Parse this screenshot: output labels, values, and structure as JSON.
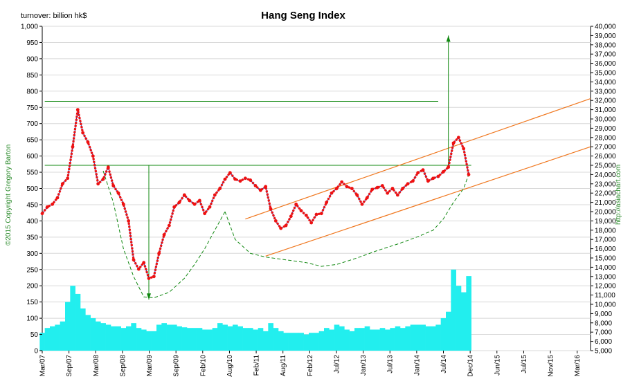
{
  "chart_data": {
    "type": "line",
    "title": "Hang Seng Index",
    "left_axis_label": "turnover: billion hk$",
    "copyright": "©2015 Copyright Gregory Barton",
    "website": "http://asiachart.com",
    "x_ticks": [
      "Mar/07",
      "Sep/07",
      "Mar/08",
      "Sep/08",
      "Mar/09",
      "Sep/09",
      "Feb/10",
      "Aug/10",
      "Feb/11",
      "Aug/11",
      "Feb/12",
      "Jul/12",
      "Jan/13",
      "Jul/13",
      "Jan/14",
      "Jul/14",
      "Dec/14",
      "Jun/15",
      "Jul/15",
      "Nov/15",
      "Mar/16"
    ],
    "x_range": [
      0,
      108
    ],
    "left_axis": {
      "min": 0,
      "max": 1000,
      "step": 50,
      "ticks": [
        "0",
        "50",
        "100",
        "150",
        "200",
        "250",
        "300",
        "350",
        "400",
        "450",
        "500",
        "550",
        "600",
        "650",
        "700",
        "750",
        "800",
        "850",
        "900",
        "950",
        "1,000"
      ]
    },
    "right_axis": {
      "min": 5000,
      "max": 40000,
      "step": 1000,
      "ticks": [
        "5,000",
        "6,000",
        "7,000",
        "8,000",
        "9,000",
        "10,000",
        "11,000",
        "12,000",
        "13,000",
        "14,000",
        "15,000",
        "16,000",
        "17,000",
        "18,000",
        "19,000",
        "20,000",
        "21,000",
        "22,000",
        "23,000",
        "24,000",
        "25,000",
        "26,000",
        "27,000",
        "28,000",
        "29,000",
        "30,000",
        "31,000",
        "32,000",
        "33,000",
        "34,000",
        "35,000",
        "36,000",
        "37,000",
        "38,000",
        "39,000",
        "40,000"
      ]
    },
    "index_series": {
      "name": "Hang Seng Index",
      "axis": "right",
      "color": "#ee1111",
      "points": [
        [
          0,
          19800
        ],
        [
          1,
          20500
        ],
        [
          2,
          20800
        ],
        [
          3,
          21500
        ],
        [
          4,
          23000
        ],
        [
          5,
          23600
        ],
        [
          6,
          27000
        ],
        [
          7,
          31000
        ],
        [
          8,
          28500
        ],
        [
          9,
          27500
        ],
        [
          10,
          26000
        ],
        [
          11,
          23000
        ],
        [
          12,
          23500
        ],
        [
          13,
          24800
        ],
        [
          14,
          22800
        ],
        [
          15,
          22000
        ],
        [
          16,
          20800
        ],
        [
          17,
          19000
        ],
        [
          18,
          14800
        ],
        [
          19,
          13800
        ],
        [
          20,
          14500
        ],
        [
          21,
          12800
        ],
        [
          22,
          13000
        ],
        [
          23,
          15500
        ],
        [
          24,
          17500
        ],
        [
          25,
          18500
        ],
        [
          26,
          20500
        ],
        [
          27,
          21000
        ],
        [
          28,
          21800
        ],
        [
          29,
          21200
        ],
        [
          30,
          20800
        ],
        [
          31,
          21200
        ],
        [
          32,
          19800
        ],
        [
          33,
          20500
        ],
        [
          34,
          21800
        ],
        [
          35,
          22500
        ],
        [
          36,
          23500
        ],
        [
          37,
          24200
        ],
        [
          38,
          23500
        ],
        [
          39,
          23300
        ],
        [
          40,
          23600
        ],
        [
          41,
          23400
        ],
        [
          42,
          22800
        ],
        [
          43,
          22300
        ],
        [
          44,
          22700
        ],
        [
          45,
          20300
        ],
        [
          46,
          19000
        ],
        [
          47,
          18200
        ],
        [
          48,
          18500
        ],
        [
          49,
          19500
        ],
        [
          50,
          20800
        ],
        [
          51,
          20100
        ],
        [
          52,
          19600
        ],
        [
          53,
          18800
        ],
        [
          54,
          19700
        ],
        [
          55,
          19800
        ],
        [
          56,
          21000
        ],
        [
          57,
          22000
        ],
        [
          58,
          22500
        ],
        [
          59,
          23200
        ],
        [
          60,
          22700
        ],
        [
          61,
          22500
        ],
        [
          62,
          21800
        ],
        [
          63,
          20800
        ],
        [
          64,
          21500
        ],
        [
          65,
          22400
        ],
        [
          66,
          22600
        ],
        [
          67,
          22800
        ],
        [
          68,
          22000
        ],
        [
          69,
          22500
        ],
        [
          70,
          21800
        ],
        [
          71,
          22500
        ],
        [
          72,
          23000
        ],
        [
          73,
          23300
        ],
        [
          74,
          24200
        ],
        [
          75,
          24500
        ],
        [
          76,
          23300
        ],
        [
          77,
          23600
        ],
        [
          78,
          23800
        ],
        [
          79,
          24300
        ],
        [
          80,
          24800
        ],
        [
          81,
          27400
        ],
        [
          82,
          28000
        ],
        [
          83,
          26800
        ],
        [
          84,
          24000
        ]
      ]
    },
    "turnover_series": {
      "name": "turnover",
      "axis": "left",
      "color": "#22eeee",
      "points": [
        [
          0,
          55
        ],
        [
          1,
          70
        ],
        [
          2,
          75
        ],
        [
          3,
          80
        ],
        [
          4,
          90
        ],
        [
          5,
          150
        ],
        [
          6,
          200
        ],
        [
          7,
          175
        ],
        [
          8,
          130
        ],
        [
          9,
          110
        ],
        [
          10,
          100
        ],
        [
          11,
          90
        ],
        [
          12,
          85
        ],
        [
          13,
          80
        ],
        [
          14,
          75
        ],
        [
          15,
          75
        ],
        [
          16,
          70
        ],
        [
          17,
          75
        ],
        [
          18,
          85
        ],
        [
          19,
          70
        ],
        [
          20,
          65
        ],
        [
          21,
          60
        ],
        [
          22,
          60
        ],
        [
          23,
          80
        ],
        [
          24,
          85
        ],
        [
          25,
          80
        ],
        [
          26,
          80
        ],
        [
          27,
          75
        ],
        [
          28,
          72
        ],
        [
          29,
          70
        ],
        [
          30,
          70
        ],
        [
          31,
          70
        ],
        [
          32,
          65
        ],
        [
          33,
          65
        ],
        [
          34,
          70
        ],
        [
          35,
          85
        ],
        [
          36,
          80
        ],
        [
          37,
          75
        ],
        [
          38,
          80
        ],
        [
          39,
          75
        ],
        [
          40,
          70
        ],
        [
          41,
          70
        ],
        [
          42,
          65
        ],
        [
          43,
          70
        ],
        [
          44,
          60
        ],
        [
          45,
          85
        ],
        [
          46,
          70
        ],
        [
          47,
          60
        ],
        [
          48,
          55
        ],
        [
          49,
          55
        ],
        [
          50,
          55
        ],
        [
          51,
          55
        ],
        [
          52,
          50
        ],
        [
          53,
          55
        ],
        [
          54,
          55
        ],
        [
          55,
          60
        ],
        [
          56,
          70
        ],
        [
          57,
          65
        ],
        [
          58,
          80
        ],
        [
          59,
          75
        ],
        [
          60,
          65
        ],
        [
          61,
          60
        ],
        [
          62,
          70
        ],
        [
          63,
          70
        ],
        [
          64,
          75
        ],
        [
          65,
          65
        ],
        [
          66,
          65
        ],
        [
          67,
          70
        ],
        [
          68,
          65
        ],
        [
          69,
          70
        ],
        [
          70,
          75
        ],
        [
          71,
          70
        ],
        [
          72,
          75
        ],
        [
          73,
          80
        ],
        [
          74,
          80
        ],
        [
          75,
          80
        ],
        [
          76,
          75
        ],
        [
          77,
          75
        ],
        [
          78,
          80
        ],
        [
          79,
          100
        ],
        [
          80,
          120
        ],
        [
          81,
          250
        ],
        [
          82,
          200
        ],
        [
          83,
          180
        ],
        [
          84,
          230
        ]
      ]
    },
    "annotations": {
      "resistance_top": 31900,
      "resistance_mid": 25000,
      "channel_upper": [
        [
          40,
          19200
        ],
        [
          108,
          32200
        ]
      ],
      "channel_lower": [
        [
          44,
          15200
        ],
        [
          108,
          27000
        ]
      ],
      "projection_arrow_up": [
        [
          80,
          25000
        ],
        [
          80,
          39000
        ]
      ],
      "projection_arrow_down": [
        [
          21,
          25000
        ],
        [
          21,
          10500
        ]
      ],
      "cup1_path": [
        [
          12,
          24400
        ],
        [
          14,
          21000
        ],
        [
          16,
          16000
        ],
        [
          18,
          13000
        ],
        [
          20,
          10800
        ],
        [
          22,
          10700
        ],
        [
          25,
          11300
        ],
        [
          28,
          12800
        ],
        [
          30,
          14300
        ],
        [
          32,
          16000
        ],
        [
          34,
          18000
        ],
        [
          36,
          20000
        ]
      ],
      "cup2_path": [
        [
          36,
          20000
        ],
        [
          38,
          17000
        ],
        [
          41,
          15500
        ],
        [
          44,
          15100
        ],
        [
          48,
          14800
        ],
        [
          52,
          14500
        ],
        [
          55,
          14100
        ],
        [
          58,
          14300
        ],
        [
          62,
          15000
        ],
        [
          66,
          15800
        ],
        [
          70,
          16500
        ],
        [
          74,
          17300
        ],
        [
          77,
          18000
        ],
        [
          79,
          19200
        ],
        [
          81,
          21000
        ],
        [
          83,
          22500
        ],
        [
          84,
          24000
        ]
      ]
    }
  }
}
